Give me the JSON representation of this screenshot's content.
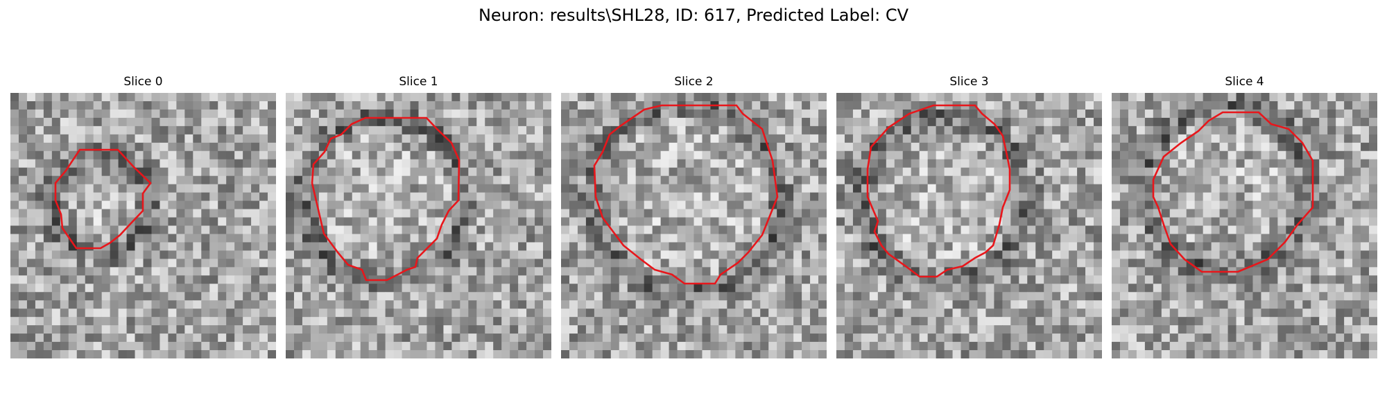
{
  "figure": {
    "title": "Neuron: results\\SHL28, ID: 617, Predicted Label: CV",
    "contour_color": "#e8161b",
    "colormap": "gray"
  },
  "slices": [
    {
      "label": "Slice 0",
      "seed": 11
    },
    {
      "label": "Slice 1",
      "seed": 23
    },
    {
      "label": "Slice 2",
      "seed": 37
    },
    {
      "label": "Slice 3",
      "seed": 41
    },
    {
      "label": "Slice 4",
      "seed": 59
    }
  ]
}
